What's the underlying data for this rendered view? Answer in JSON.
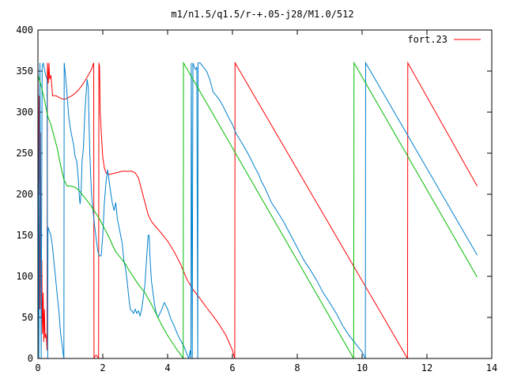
{
  "chart_data": {
    "type": "line",
    "title": "m1/n1.5/q1.5/r-+.05-j28/M1.0/512",
    "xlabel": "",
    "ylabel": "",
    "xlim": [
      0,
      14
    ],
    "ylim": [
      0,
      400
    ],
    "x_ticks": [
      "0",
      "2",
      "4",
      "6",
      "8",
      "10",
      "12",
      "14"
    ],
    "y_ticks": [
      "0",
      "50",
      "100",
      "150",
      "200",
      "250",
      "300",
      "350",
      "400"
    ],
    "grid": false,
    "legend_position": "top-right",
    "legend": [
      "fort.23"
    ],
    "colors": {
      "red": "#ff0000",
      "blue": "#0080cc",
      "green": "#00bb00"
    },
    "series": [
      {
        "name": "fort.23",
        "color": "#ff0000",
        "points": [
          [
            0.0,
            360
          ],
          [
            0.02,
            200
          ],
          [
            0.04,
            320
          ],
          [
            0.06,
            60
          ],
          [
            0.08,
            275
          ],
          [
            0.1,
            40
          ],
          [
            0.12,
            120
          ],
          [
            0.14,
            30
          ],
          [
            0.16,
            80
          ],
          [
            0.18,
            20
          ],
          [
            0.2,
            60
          ],
          [
            0.22,
            25
          ],
          [
            0.24,
            30
          ],
          [
            0.26,
            25
          ],
          [
            0.28,
            10
          ],
          [
            0.29,
            360
          ],
          [
            0.32,
            335
          ],
          [
            0.34,
            360
          ],
          [
            0.36,
            340
          ],
          [
            0.4,
            345
          ],
          [
            0.45,
            320
          ],
          [
            0.55,
            320
          ],
          [
            0.65,
            318
          ],
          [
            0.75,
            316
          ],
          [
            0.85,
            316
          ],
          [
            0.95,
            318
          ],
          [
            1.05,
            320
          ],
          [
            1.15,
            323
          ],
          [
            1.25,
            327
          ],
          [
            1.35,
            332
          ],
          [
            1.45,
            338
          ],
          [
            1.55,
            345
          ],
          [
            1.65,
            352
          ],
          [
            1.7,
            358
          ],
          [
            1.72,
            360
          ],
          [
            1.73,
            0
          ],
          [
            1.76,
            3
          ],
          [
            1.8,
            4
          ],
          [
            1.84,
            2
          ],
          [
            1.87,
            0
          ],
          [
            1.88,
            360
          ],
          [
            1.9,
            355
          ],
          [
            1.92,
            300
          ],
          [
            1.96,
            270
          ],
          [
            2.0,
            245
          ],
          [
            2.05,
            232
          ],
          [
            2.1,
            226
          ],
          [
            2.2,
            224
          ],
          [
            2.4,
            226
          ],
          [
            2.6,
            228
          ],
          [
            2.8,
            228
          ],
          [
            2.9,
            228
          ],
          [
            3.0,
            226
          ],
          [
            3.1,
            220
          ],
          [
            3.2,
            205
          ],
          [
            3.3,
            190
          ],
          [
            3.4,
            175
          ],
          [
            3.5,
            167
          ],
          [
            3.6,
            162
          ],
          [
            3.8,
            153
          ],
          [
            4.0,
            143
          ],
          [
            4.2,
            130
          ],
          [
            4.4,
            115
          ],
          [
            4.6,
            96
          ],
          [
            4.8,
            83
          ],
          [
            5.0,
            73
          ],
          [
            5.2,
            62
          ],
          [
            5.4,
            52
          ],
          [
            5.6,
            41
          ],
          [
            5.8,
            28
          ],
          [
            6.0,
            10
          ],
          [
            6.07,
            0
          ],
          [
            6.08,
            360
          ],
          [
            11.4,
            0
          ],
          [
            11.41,
            360
          ],
          [
            13.55,
            210
          ]
        ]
      },
      {
        "name": "",
        "color": "#0080cc",
        "points": [
          [
            0.0,
            360
          ],
          [
            0.03,
            0
          ],
          [
            0.06,
            360
          ],
          [
            0.1,
            0
          ],
          [
            0.13,
            355
          ],
          [
            0.16,
            360
          ],
          [
            0.2,
            352
          ],
          [
            0.24,
            345
          ],
          [
            0.28,
            340
          ],
          [
            0.3,
            0
          ],
          [
            0.31,
            160
          ],
          [
            0.35,
            155
          ],
          [
            0.4,
            150
          ],
          [
            0.45,
            135
          ],
          [
            0.5,
            115
          ],
          [
            0.55,
            95
          ],
          [
            0.6,
            75
          ],
          [
            0.65,
            55
          ],
          [
            0.7,
            30
          ],
          [
            0.75,
            15
          ],
          [
            0.78,
            5
          ],
          [
            0.8,
            0
          ],
          [
            0.81,
            360
          ],
          [
            0.85,
            345
          ],
          [
            0.9,
            320
          ],
          [
            0.95,
            295
          ],
          [
            1.0,
            280
          ],
          [
            1.05,
            270
          ],
          [
            1.1,
            260
          ],
          [
            1.15,
            245
          ],
          [
            1.2,
            240
          ],
          [
            1.25,
            215
          ],
          [
            1.28,
            195
          ],
          [
            1.3,
            188
          ],
          [
            1.33,
            200
          ],
          [
            1.36,
            240
          ],
          [
            1.4,
            255
          ],
          [
            1.45,
            300
          ],
          [
            1.48,
            320
          ],
          [
            1.52,
            340
          ],
          [
            1.55,
            330
          ],
          [
            1.58,
            280
          ],
          [
            1.6,
            250
          ],
          [
            1.63,
            220
          ],
          [
            1.66,
            195
          ],
          [
            1.7,
            180
          ],
          [
            1.75,
            160
          ],
          [
            1.8,
            145
          ],
          [
            1.85,
            130
          ],
          [
            1.9,
            125
          ],
          [
            1.95,
            125
          ],
          [
            2.0,
            150
          ],
          [
            2.05,
            190
          ],
          [
            2.1,
            215
          ],
          [
            2.15,
            230
          ],
          [
            2.2,
            215
          ],
          [
            2.25,
            200
          ],
          [
            2.3,
            188
          ],
          [
            2.35,
            180
          ],
          [
            2.4,
            190
          ],
          [
            2.45,
            170
          ],
          [
            2.5,
            160
          ],
          [
            2.55,
            150
          ],
          [
            2.6,
            140
          ],
          [
            2.65,
            120
          ],
          [
            2.7,
            110
          ],
          [
            2.75,
            95
          ],
          [
            2.8,
            75
          ],
          [
            2.85,
            60
          ],
          [
            2.9,
            58
          ],
          [
            2.95,
            55
          ],
          [
            3.0,
            60
          ],
          [
            3.05,
            55
          ],
          [
            3.1,
            58
          ],
          [
            3.15,
            52
          ],
          [
            3.2,
            60
          ],
          [
            3.25,
            75
          ],
          [
            3.3,
            90
          ],
          [
            3.35,
            120
          ],
          [
            3.4,
            150
          ],
          [
            3.43,
            150
          ],
          [
            3.46,
            120
          ],
          [
            3.5,
            95
          ],
          [
            3.55,
            80
          ],
          [
            3.6,
            65
          ],
          [
            3.65,
            55
          ],
          [
            3.7,
            50
          ],
          [
            3.8,
            58
          ],
          [
            3.9,
            68
          ],
          [
            4.0,
            60
          ],
          [
            4.1,
            48
          ],
          [
            4.2,
            40
          ],
          [
            4.3,
            30
          ],
          [
            4.4,
            22
          ],
          [
            4.5,
            15
          ],
          [
            4.55,
            10
          ],
          [
            4.6,
            5
          ],
          [
            4.65,
            0
          ],
          [
            4.7,
            10
          ],
          [
            4.72,
            0
          ],
          [
            4.73,
            360
          ],
          [
            4.76,
            0
          ],
          [
            4.78,
            360
          ],
          [
            4.82,
            355
          ],
          [
            4.86,
            352
          ],
          [
            4.9,
            355
          ],
          [
            4.93,
            0
          ],
          [
            4.94,
            360
          ],
          [
            5.0,
            360
          ],
          [
            5.1,
            355
          ],
          [
            5.2,
            350
          ],
          [
            5.3,
            340
          ],
          [
            5.4,
            325
          ],
          [
            5.5,
            320
          ],
          [
            5.6,
            315
          ],
          [
            5.7,
            308
          ],
          [
            5.8,
            300
          ],
          [
            5.9,
            292
          ],
          [
            6.0,
            285
          ],
          [
            6.1,
            275
          ],
          [
            6.2,
            268
          ],
          [
            6.3,
            262
          ],
          [
            6.4,
            255
          ],
          [
            6.5,
            248
          ],
          [
            6.6,
            240
          ],
          [
            6.7,
            232
          ],
          [
            6.8,
            225
          ],
          [
            6.9,
            215
          ],
          [
            7.0,
            208
          ],
          [
            7.2,
            190
          ],
          [
            7.4,
            178
          ],
          [
            7.6,
            165
          ],
          [
            7.8,
            150
          ],
          [
            8.0,
            135
          ],
          [
            8.2,
            120
          ],
          [
            8.4,
            108
          ],
          [
            8.6,
            95
          ],
          [
            8.8,
            80
          ],
          [
            9.0,
            68
          ],
          [
            9.2,
            55
          ],
          [
            9.4,
            40
          ],
          [
            9.6,
            28
          ],
          [
            9.8,
            18
          ],
          [
            10.0,
            8
          ],
          [
            10.1,
            0
          ],
          [
            10.11,
            360
          ],
          [
            13.55,
            126
          ]
        ]
      },
      {
        "name": "",
        "color": "#00bb00",
        "points": [
          [
            0.0,
            345
          ],
          [
            0.1,
            332
          ],
          [
            0.2,
            315
          ],
          [
            0.25,
            305
          ],
          [
            0.3,
            295
          ],
          [
            0.35,
            290
          ],
          [
            0.4,
            285
          ],
          [
            0.5,
            270
          ],
          [
            0.6,
            255
          ],
          [
            0.7,
            235
          ],
          [
            0.8,
            218
          ],
          [
            0.9,
            210
          ],
          [
            1.0,
            210
          ],
          [
            1.1,
            209
          ],
          [
            1.2,
            207
          ],
          [
            1.3,
            203
          ],
          [
            1.4,
            198
          ],
          [
            1.5,
            193
          ],
          [
            1.6,
            188
          ],
          [
            1.7,
            182
          ],
          [
            1.8,
            176
          ],
          [
            1.9,
            170
          ],
          [
            2.0,
            162
          ],
          [
            2.1,
            155
          ],
          [
            2.2,
            147
          ],
          [
            2.3,
            138
          ],
          [
            2.4,
            130
          ],
          [
            2.5,
            125
          ],
          [
            2.6,
            120
          ],
          [
            2.7,
            115
          ],
          [
            2.8,
            108
          ],
          [
            2.9,
            102
          ],
          [
            3.0,
            96
          ],
          [
            3.1,
            90
          ],
          [
            3.2,
            85
          ],
          [
            3.3,
            80
          ],
          [
            3.4,
            73
          ],
          [
            3.5,
            66
          ],
          [
            3.6,
            58
          ],
          [
            3.7,
            50
          ],
          [
            3.8,
            42
          ],
          [
            3.9,
            35
          ],
          [
            4.0,
            28
          ],
          [
            4.1,
            22
          ],
          [
            4.2,
            16
          ],
          [
            4.3,
            10
          ],
          [
            4.4,
            5
          ],
          [
            4.48,
            0
          ],
          [
            4.49,
            360
          ],
          [
            9.74,
            0
          ],
          [
            9.75,
            360
          ],
          [
            13.55,
            99
          ]
        ]
      }
    ]
  }
}
